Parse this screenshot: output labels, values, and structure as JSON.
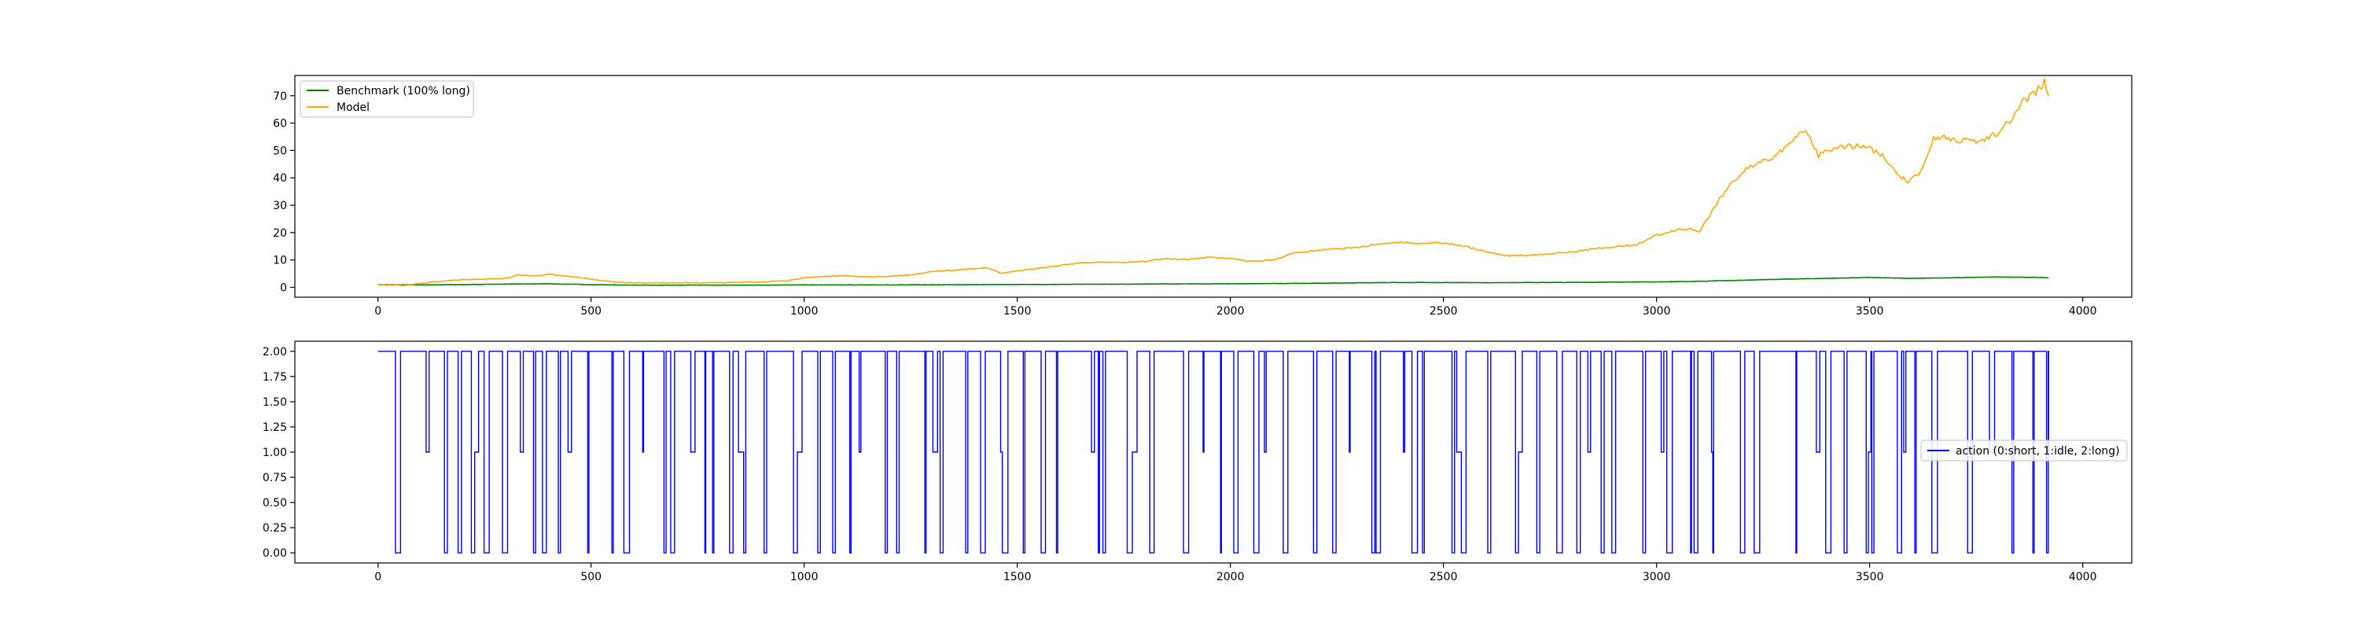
{
  "colors": {
    "benchmark": "#008000",
    "model": "#ffa500",
    "action": "#0000ff",
    "axes": "#000000",
    "legend_border": "#cccccc",
    "background": "#ffffff"
  },
  "chart_data": [
    {
      "type": "line",
      "title": "",
      "xlabel": "",
      "ylabel": "",
      "xlim": [
        -195,
        4115
      ],
      "ylim": [
        -3.6,
        77.4
      ],
      "xticks": [
        0,
        500,
        1000,
        1500,
        2000,
        2500,
        3000,
        3500,
        4000
      ],
      "xtick_labels": [
        "0",
        "500",
        "1000",
        "1500",
        "2000",
        "2500",
        "3000",
        "3500",
        "4000"
      ],
      "yticks": [
        0,
        10,
        20,
        30,
        40,
        50,
        60,
        70
      ],
      "ytick_labels": [
        "0",
        "10",
        "20",
        "30",
        "40",
        "50",
        "60",
        "70"
      ],
      "grid": false,
      "legend_position": "upper-left",
      "series": [
        {
          "name": "Benchmark (100% long)",
          "color_key": "benchmark",
          "x": [
            0,
            100,
            200,
            300,
            400,
            500,
            600,
            700,
            800,
            900,
            1000,
            1200,
            1400,
            1600,
            1800,
            2000,
            2200,
            2400,
            2600,
            2800,
            3000,
            3100,
            3200,
            3300,
            3400,
            3500,
            3600,
            3700,
            3800,
            3900,
            3920
          ],
          "values": [
            1.0,
            0.9,
            1.0,
            1.2,
            1.3,
            1.0,
            0.8,
            0.8,
            0.8,
            0.8,
            0.9,
            0.9,
            1.0,
            1.1,
            1.2,
            1.3,
            1.5,
            1.8,
            1.7,
            1.8,
            2.0,
            2.2,
            2.6,
            3.0,
            3.3,
            3.6,
            3.3,
            3.5,
            3.8,
            3.6,
            3.5
          ]
        },
        {
          "name": "Model",
          "color_key": "model",
          "x": [
            0,
            60,
            100,
            150,
            200,
            250,
            300,
            330,
            370,
            400,
            450,
            500,
            560,
            650,
            800,
            900,
            960,
            1000,
            1050,
            1100,
            1150,
            1200,
            1250,
            1300,
            1350,
            1400,
            1430,
            1460,
            1500,
            1550,
            1600,
            1650,
            1700,
            1750,
            1800,
            1850,
            1900,
            1950,
            2000,
            2050,
            2100,
            2150,
            2200,
            2250,
            2300,
            2350,
            2400,
            2450,
            2500,
            2550,
            2600,
            2650,
            2700,
            2750,
            2800,
            2850,
            2900,
            2950,
            3000,
            3050,
            3080,
            3100,
            3120,
            3150,
            3200,
            3250,
            3280,
            3300,
            3330,
            3350,
            3380,
            3400,
            3430,
            3460,
            3500,
            3530,
            3560,
            3590,
            3620,
            3650,
            3700,
            3750,
            3780,
            3800,
            3830,
            3860,
            3880,
            3900,
            3910,
            3920
          ],
          "values": [
            1.0,
            0.7,
            1.5,
            2.3,
            2.8,
            3.0,
            3.2,
            4.5,
            4.2,
            4.8,
            4.0,
            3.0,
            1.8,
            1.6,
            1.7,
            2.0,
            2.4,
            3.5,
            4.0,
            4.2,
            3.8,
            4.0,
            4.5,
            5.8,
            6.2,
            6.8,
            7.2,
            5.2,
            6.0,
            7.0,
            8.0,
            9.0,
            9.2,
            9.0,
            9.5,
            10.5,
            10.2,
            11.0,
            10.5,
            9.5,
            10.0,
            12.5,
            13.5,
            14.0,
            14.5,
            16.0,
            16.5,
            16.0,
            16.2,
            15.0,
            13.0,
            11.5,
            11.8,
            12.2,
            13.0,
            14.0,
            14.8,
            15.5,
            19.0,
            21.0,
            21.5,
            20.5,
            25.0,
            33.0,
            42.0,
            47.0,
            47.5,
            51.0,
            55.0,
            57.0,
            48.0,
            50.0,
            51.5,
            51.5,
            51.0,
            48.0,
            42.0,
            38.5,
            42.0,
            55.0,
            54.0,
            53.0,
            55.0,
            56.0,
            61.0,
            68.0,
            70.0,
            73.0,
            75.0,
            70.0
          ]
        }
      ]
    },
    {
      "type": "line",
      "title": "",
      "xlabel": "",
      "ylabel": "",
      "xlim": [
        -195,
        4115
      ],
      "ylim": [
        -0.1,
        2.1
      ],
      "xticks": [
        0,
        500,
        1000,
        1500,
        2000,
        2500,
        3000,
        3500,
        4000
      ],
      "xtick_labels": [
        "0",
        "500",
        "1000",
        "1500",
        "2000",
        "2500",
        "3000",
        "3500",
        "4000"
      ],
      "yticks": [
        0,
        0.25,
        0.5,
        0.75,
        1.0,
        1.25,
        1.5,
        1.75,
        2.0
      ],
      "ytick_labels": [
        "0.00",
        "0.25",
        "0.50",
        "0.75",
        "1.00",
        "1.25",
        "1.50",
        "1.75",
        "2.00"
      ],
      "grid": false,
      "legend_position": "center-right",
      "step_count": 3920,
      "step_seed": 1234567,
      "series": [
        {
          "name": "action (0:short, 1:idle, 2:long)",
          "color_key": "action",
          "values": [
            2,
            2,
            2,
            0,
            2,
            2,
            1,
            2,
            0,
            2,
            0,
            2,
            2,
            0,
            1,
            2,
            0,
            2,
            2,
            0,
            2,
            1,
            2,
            0,
            2,
            0,
            2,
            2,
            0,
            2,
            1,
            2,
            0,
            2,
            2,
            0,
            2,
            0,
            2,
            1,
            2,
            2,
            0,
            2,
            0,
            2,
            2,
            1,
            2,
            0,
            2,
            0,
            2,
            2,
            0,
            2,
            1,
            0,
            2,
            2,
            0,
            2,
            2,
            0,
            1,
            2,
            0,
            2,
            2,
            0,
            2,
            0,
            2,
            1,
            2,
            2,
            0,
            2,
            0,
            2,
            2,
            0,
            2,
            1,
            2,
            0,
            2,
            2,
            0,
            2,
            0,
            2,
            2,
            1,
            0,
            2,
            2,
            0,
            2,
            0
          ]
        }
      ]
    }
  ]
}
